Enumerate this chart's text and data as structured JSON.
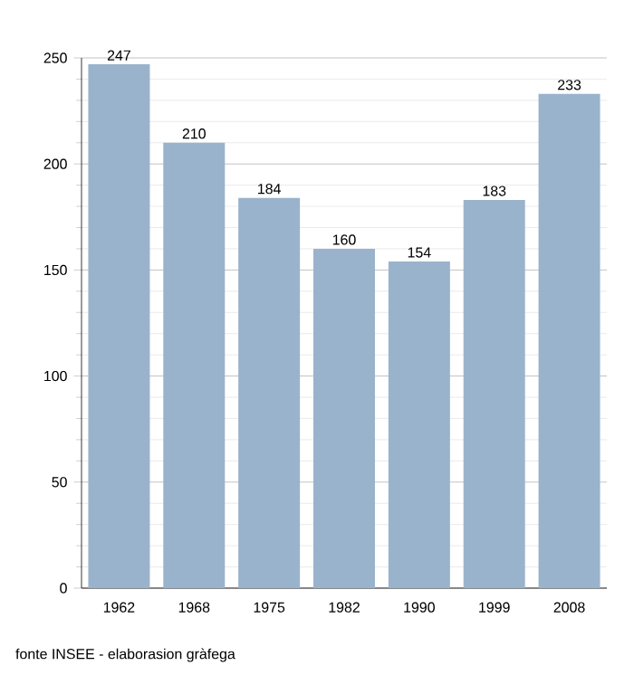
{
  "chart_data": {
    "type": "bar",
    "categories": [
      "1962",
      "1968",
      "1975",
      "1982",
      "1990",
      "1999",
      "2008"
    ],
    "values": [
      247,
      210,
      184,
      160,
      154,
      183,
      233
    ],
    "color": "#9ab3cc",
    "ylim": [
      0,
      250
    ],
    "yticks": [
      0,
      50,
      100,
      150,
      200,
      250
    ],
    "grid": "y",
    "data_labels": true,
    "annotations": [
      "fonte INSEE - elaborasion gràfega"
    ]
  }
}
